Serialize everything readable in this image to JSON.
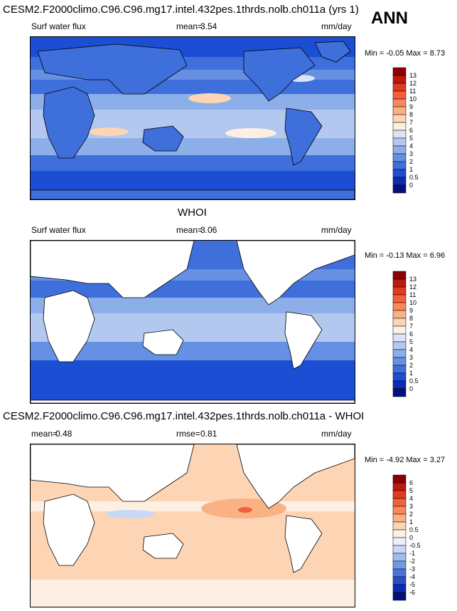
{
  "header": {
    "title": "CESM2.F2000climo.C96.C96.mg17.intel.432pes.1thrds.nolb.ch011a (yrs 1)",
    "season": "ANN"
  },
  "panel1": {
    "variable": "Surf water flux",
    "mean_label": "mean=",
    "mean_value": "3.54",
    "units": "mm/day",
    "minmax": "Min = -0.05 Max = 8.73",
    "colorbar_labels": [
      "13",
      "12",
      "11",
      "10",
      "9",
      "8",
      "7",
      "6",
      "5",
      "4",
      "3",
      "2",
      "1",
      "0.5",
      "0"
    ]
  },
  "panel2": {
    "title": "WHOI",
    "variable": "Surf water flux",
    "mean_label": "mean=",
    "mean_value": "3.06",
    "units": "mm/day",
    "minmax": "Min = -0.13 Max = 6.96",
    "colorbar_labels": [
      "13",
      "12",
      "11",
      "10",
      "9",
      "8",
      "7",
      "6",
      "5",
      "4",
      "3",
      "2",
      "1",
      "0.5",
      "0"
    ]
  },
  "panel3": {
    "title": "CESM2.F2000climo.C96.C96.mg17.intel.432pes.1thrds.nolb.ch011a - WHOI",
    "mean_label": "mean=",
    "mean_value": "0.48",
    "rmse_label": "rmse=",
    "rmse_value": "0.81",
    "units": "mm/day",
    "minmax": "Min = -4.92 Max = 3.27",
    "colorbar_labels": [
      "6",
      "5",
      "4",
      "3",
      "2",
      "1",
      "0.5",
      "0",
      "-0.5",
      "-1",
      "-2",
      "-3",
      "-4",
      "-5",
      "-6"
    ]
  },
  "colors": {
    "seq_scale": [
      "#8b0000",
      "#c0160d",
      "#e03b1e",
      "#f2613a",
      "#f7895c",
      "#fab183",
      "#fdd5b4",
      "#fdf0e2",
      "#d9e4f5",
      "#b2c8ee",
      "#8caee9",
      "#6590e3",
      "#3e6fdb",
      "#1b4ed2",
      "#0b2bb0",
      "#02127a"
    ],
    "div_scale": [
      "#8b0000",
      "#c0160d",
      "#e03b1e",
      "#f2613a",
      "#f7895c",
      "#fab183",
      "#fdd5b4",
      "#fdf0e2",
      "#e9f0fb",
      "#c9d9f4",
      "#9fbdec",
      "#7299e3",
      "#4a73d8",
      "#2650c9",
      "#0b2bb0",
      "#02127a"
    ],
    "land": "#ffffff",
    "coast": "#000000"
  }
}
